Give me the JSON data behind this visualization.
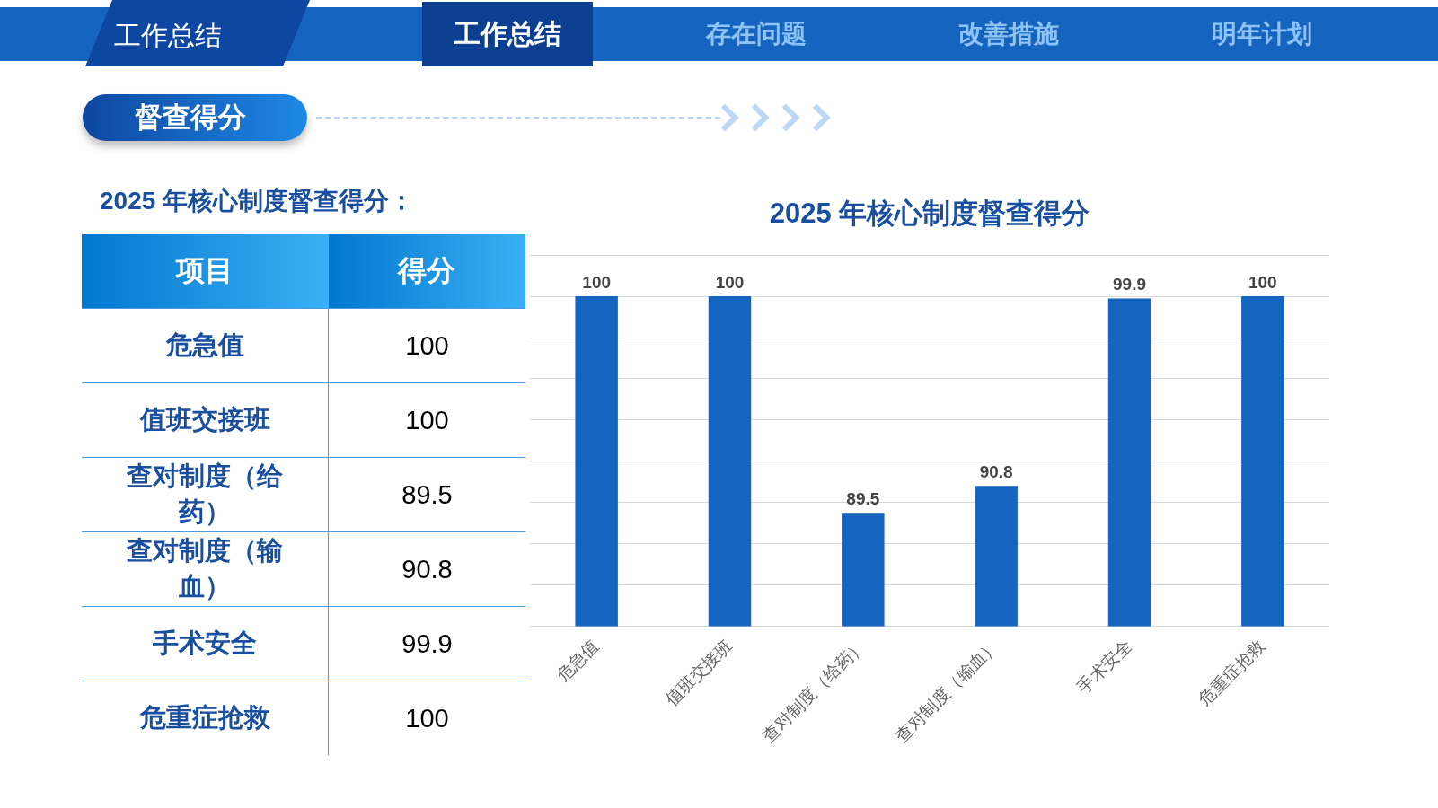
{
  "chart_data": [
    {
      "type": "other",
      "title": "2025 年核心制度督查得分：",
      "annotations": [
        "工作总结",
        "工作总结",
        "存在问题",
        "改善措施",
        "明年计划",
        "督查得分",
        "项目",
        "得分",
        "危急值",
        "100",
        "值班交接班",
        "100",
        "查对制度（给药）",
        "89.5",
        "查对制度（输血）",
        "90.8",
        "手术安全",
        "99.9",
        "危重症抢救",
        "100"
      ]
    },
    {
      "type": "bar",
      "title": "2025 年核心制度督查得分",
      "categories": [
        "危急值",
        "值班交接班",
        "查对制度（给药）",
        "查对制度（输血）",
        "手术安全",
        "危重症抢救"
      ],
      "values": [
        100,
        100,
        89.5,
        90.8,
        99.9,
        100
      ],
      "color": "#1565c0",
      "ylim": [
        84,
        102
      ],
      "yticks": [
        84,
        86,
        88,
        90,
        92,
        94,
        96,
        98,
        100,
        102
      ],
      "grid": "y",
      "tick_labels": "x",
      "data_labels": true
    }
  ]
}
